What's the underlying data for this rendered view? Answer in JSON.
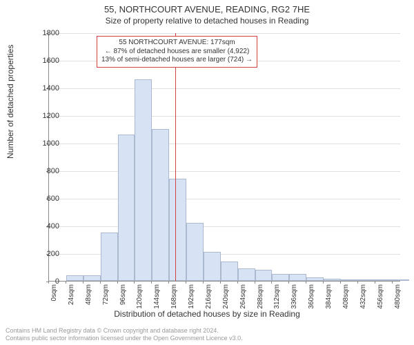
{
  "title": "55, NORTHCOURT AVENUE, READING, RG2 7HE",
  "subtitle": "Size of property relative to detached houses in Reading",
  "ylabel": "Number of detached properties",
  "xlabel": "Distribution of detached houses by size in Reading",
  "footer1": "Contains HM Land Registry data © Crown copyright and database right 2024.",
  "footer2": "Contains public sector information licensed under the Open Government Licence v3.0.",
  "chart": {
    "type": "histogram",
    "background_color": "#ffffff",
    "grid_color": "#e0e0e0",
    "axis_color": "#888888",
    "bar_fill": "#d7e3f4",
    "bar_border": "#aab9d0",
    "refline_color": "#d04040",
    "refline_x": 177,
    "ylim": [
      0,
      1800
    ],
    "ytick_step": 200,
    "yticks": [
      0,
      200,
      400,
      600,
      800,
      1000,
      1200,
      1400,
      1600,
      1800
    ],
    "xlim": [
      0,
      492
    ],
    "xtick_step": 24,
    "xticks_labels": [
      "0sqm",
      "24sqm",
      "48sqm",
      "72sqm",
      "96sqm",
      "120sqm",
      "144sqm",
      "168sqm",
      "192sqm",
      "216sqm",
      "240sqm",
      "264sqm",
      "288sqm",
      "312sqm",
      "336sqm",
      "360sqm",
      "384sqm",
      "408sqm",
      "432sqm",
      "456sqm",
      "480sqm"
    ],
    "bin_width": 24,
    "bins_left_edge": [
      0,
      24,
      48,
      72,
      96,
      120,
      144,
      168,
      192,
      216,
      240,
      264,
      288,
      312,
      336,
      360,
      384,
      408,
      432,
      456,
      480
    ],
    "values": [
      0,
      40,
      40,
      350,
      1060,
      1460,
      1100,
      740,
      420,
      210,
      140,
      90,
      80,
      50,
      50,
      25,
      15,
      10,
      10,
      10,
      10
    ],
    "annotation": {
      "lines": [
        "55 NORTHCOURT AVENUE: 177sqm",
        "← 87% of detached houses are smaller (4,922)",
        "13% of semi-detached houses are larger (724) →"
      ],
      "box_border": "#d04040",
      "box_bg": "#ffffff",
      "font_size": 10
    }
  }
}
